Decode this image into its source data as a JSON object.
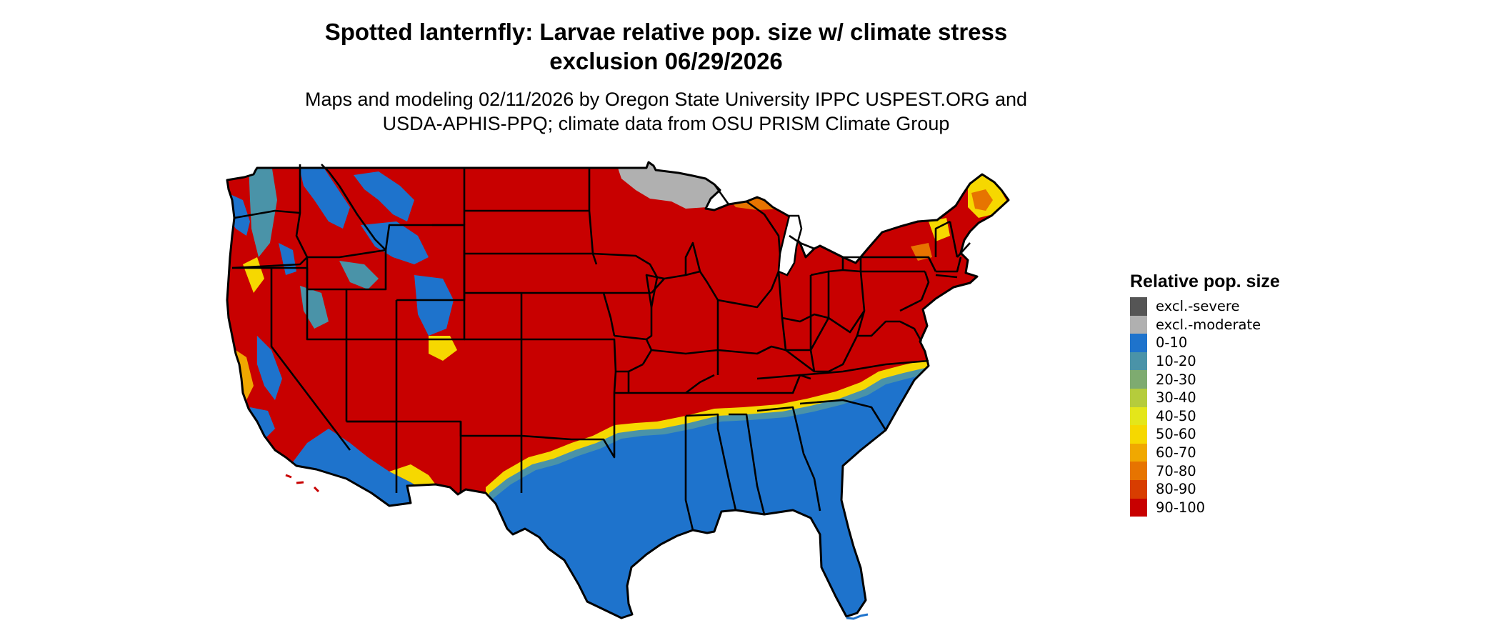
{
  "title": {
    "line1": "Spotted lanternfly: Larvae relative pop. size w/ climate stress",
    "line2": "exclusion 06/29/2026"
  },
  "subtitle": {
    "line1": "Maps and modeling 02/11/2026 by Oregon State University IPPC USPEST.ORG and",
    "line2": "USDA-APHIS-PPQ; climate data from OSU PRISM Climate Group"
  },
  "legend": {
    "title": "Relative pop. size",
    "items": [
      {
        "label": "excl.-severe",
        "color": "#555555"
      },
      {
        "label": "excl.-moderate",
        "color": "#b0b0b0"
      },
      {
        "label": "0-10",
        "color": "#1e73cc"
      },
      {
        "label": "10-20",
        "color": "#4a93a8"
      },
      {
        "label": "20-30",
        "color": "#7eab70"
      },
      {
        "label": "30-40",
        "color": "#b5cc3c"
      },
      {
        "label": "40-50",
        "color": "#e4e61a"
      },
      {
        "label": "50-60",
        "color": "#f6d800"
      },
      {
        "label": "60-70",
        "color": "#f0a800"
      },
      {
        "label": "70-80",
        "color": "#e77400"
      },
      {
        "label": "80-90",
        "color": "#d83d00"
      },
      {
        "label": "90-100",
        "color": "#c80000"
      }
    ]
  },
  "map": {
    "colors": {
      "high": "#c80000",
      "low": "#1e73cc",
      "mid_blue": "#4a93a8",
      "transition_yellow": "#f6d800",
      "transition_orange": "#e77400",
      "excluded_moderate": "#b0b0b0",
      "border": "#000000"
    }
  }
}
